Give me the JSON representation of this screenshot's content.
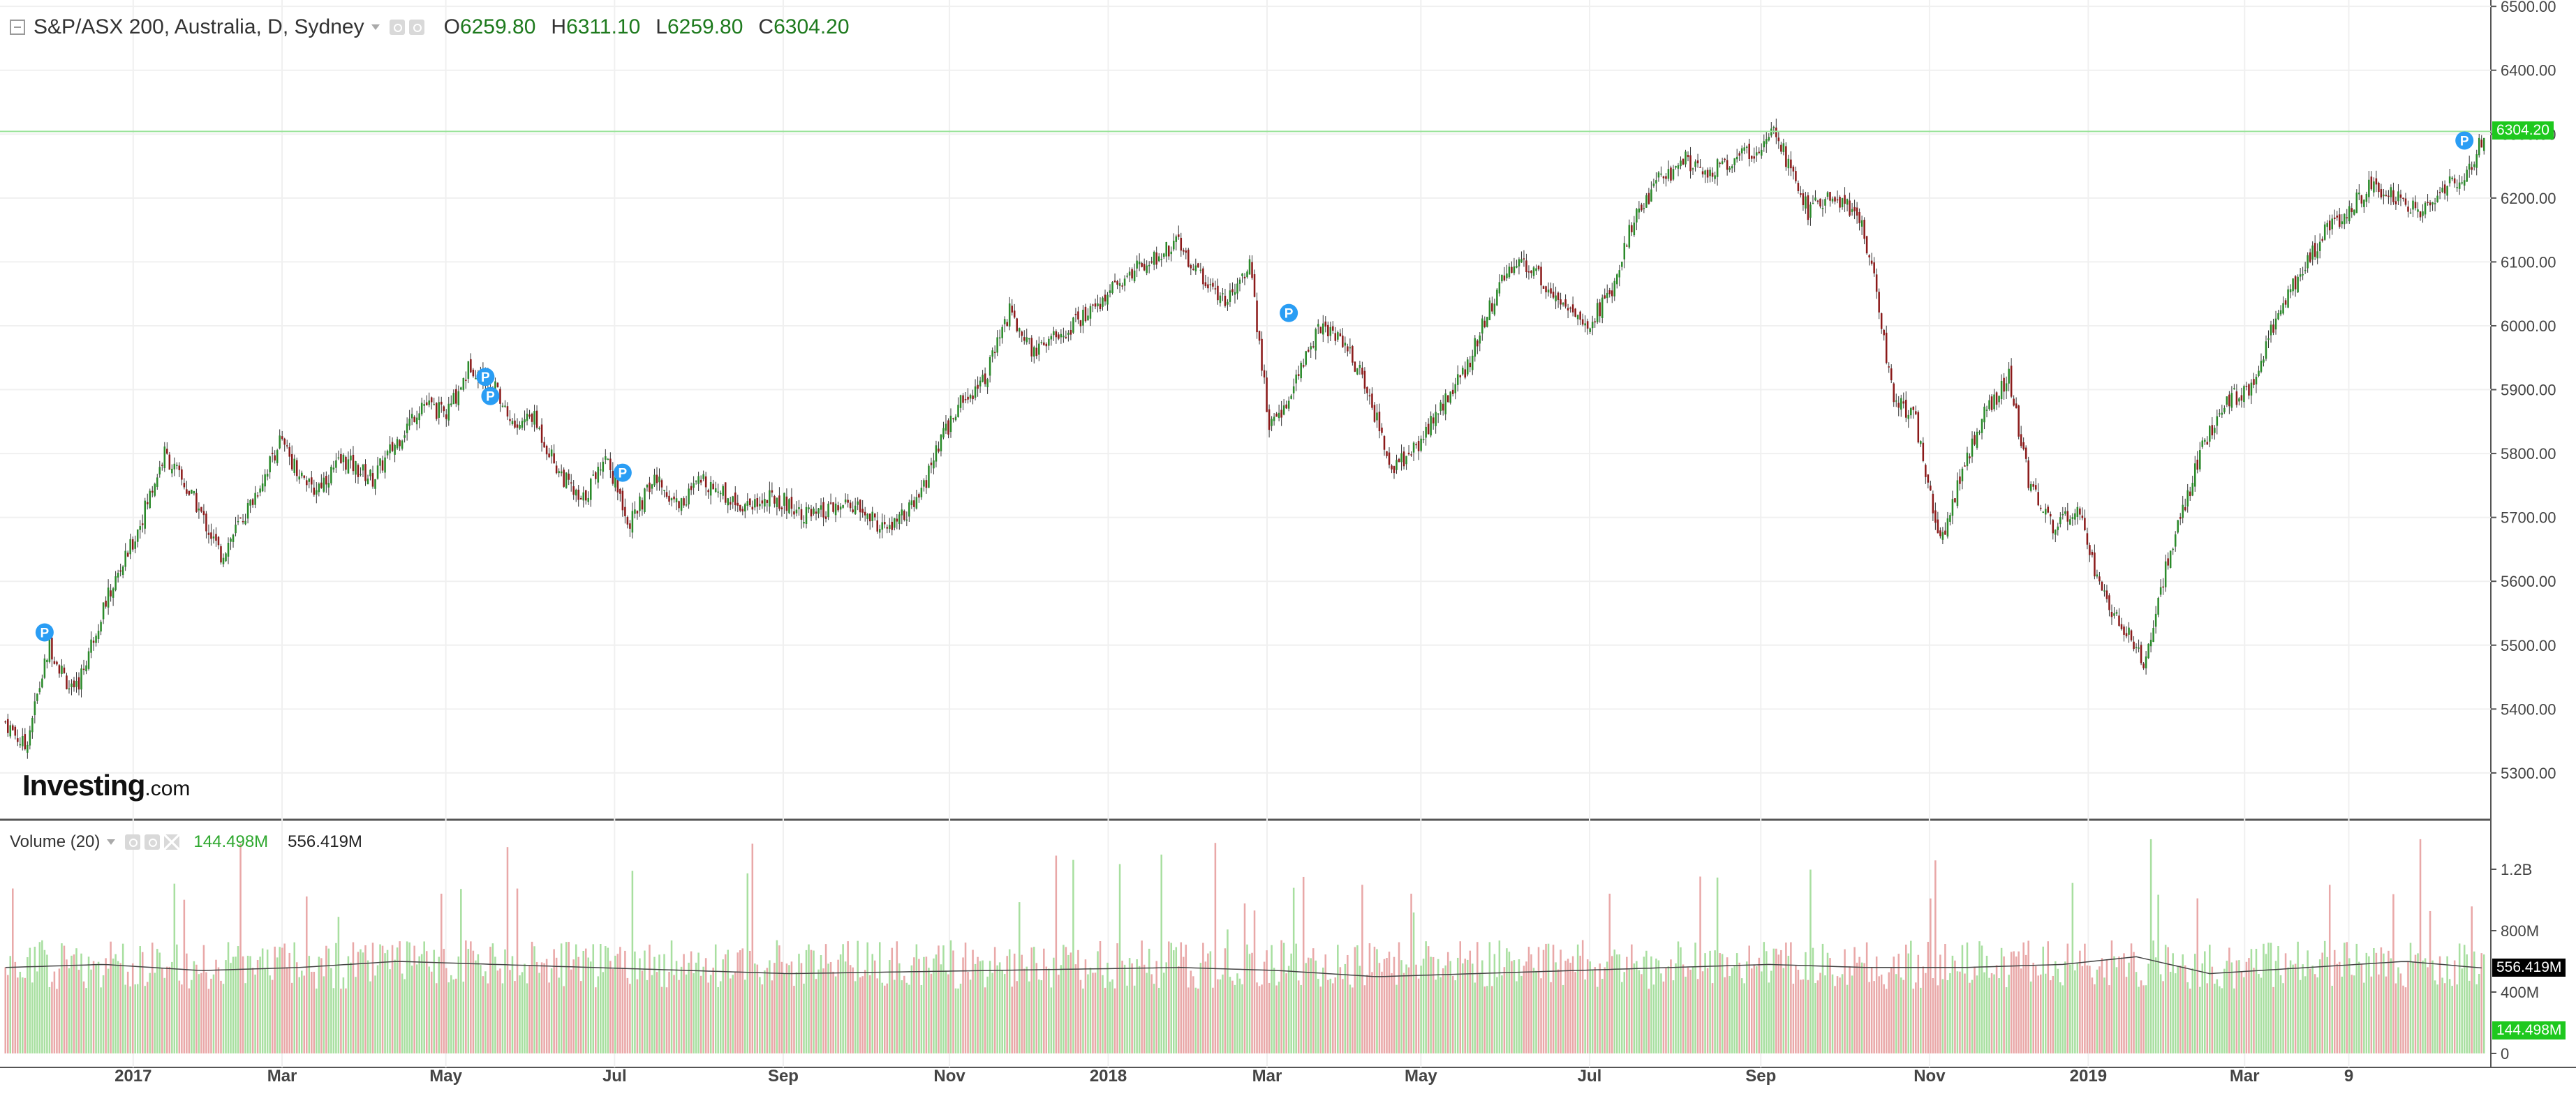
{
  "header": {
    "symbol_title": "S&P/ASX 200, Australia, D, Sydney",
    "open_label": "O",
    "open_value": "6259.80",
    "high_label": "H",
    "high_value": "6311.10",
    "low_label": "L",
    "low_value": "6259.80",
    "close_label": "C",
    "close_value": "6304.20"
  },
  "volume_legend": {
    "title": "Volume (20)",
    "volume_value": "144.498M",
    "ma_value": "556.419M"
  },
  "brand": {
    "name": "Investing",
    "suffix": ".com"
  },
  "last_price_tag": "6304.20",
  "last_volume_tag": "144.498M",
  "last_ma_tag": "556.419M",
  "colors": {
    "up": "#2a8a2a",
    "down": "#8b1a1a",
    "wick": "#333333",
    "vol_up": "#a8dfa0",
    "vol_down": "#e9a8a8",
    "price_line": "#9be39b",
    "price_tag": "#1ec81e",
    "marker": "#2a9df4",
    "ma_line": "#444444"
  },
  "chart_data": {
    "type": "candlestick",
    "title": "S&P/ASX 200, Australia, D, Sydney",
    "x_ticks": [
      "2017",
      "Mar",
      "May",
      "Jul",
      "Sep",
      "Nov",
      "2018",
      "Mar",
      "May",
      "Jul",
      "Sep",
      "Nov",
      "2019",
      "Mar",
      "9"
    ],
    "price_axis": {
      "ylim": [
        5230,
        6510
      ],
      "ticks": [
        "5300.00",
        "5400.00",
        "5500.00",
        "5600.00",
        "5700.00",
        "5800.00",
        "5900.00",
        "6000.00",
        "6100.00",
        "6200.00",
        "6300.00",
        "6400.00",
        "6500.00"
      ],
      "tick_values": [
        5300,
        5400,
        5500,
        5600,
        5700,
        5800,
        5900,
        6000,
        6100,
        6200,
        6300,
        6400,
        6500
      ]
    },
    "volume_axis": {
      "ylim": [
        0,
        1400
      ],
      "ticks": [
        "0",
        "400M",
        "800M",
        "1.2B"
      ],
      "tick_values": [
        0,
        400,
        800,
        1200
      ]
    },
    "last_price": 6304.2,
    "approx_close_path": [
      [
        0,
        5380
      ],
      [
        8,
        5340
      ],
      [
        18,
        5500
      ],
      [
        28,
        5420
      ],
      [
        40,
        5560
      ],
      [
        52,
        5660
      ],
      [
        65,
        5800
      ],
      [
        78,
        5720
      ],
      [
        88,
        5640
      ],
      [
        100,
        5720
      ],
      [
        112,
        5820
      ],
      [
        125,
        5740
      ],
      [
        138,
        5790
      ],
      [
        150,
        5760
      ],
      [
        160,
        5820
      ],
      [
        170,
        5880
      ],
      [
        180,
        5860
      ],
      [
        190,
        5940
      ],
      [
        200,
        5900
      ],
      [
        208,
        5840
      ],
      [
        215,
        5860
      ],
      [
        225,
        5780
      ],
      [
        235,
        5720
      ],
      [
        245,
        5800
      ],
      [
        255,
        5690
      ],
      [
        265,
        5760
      ],
      [
        275,
        5720
      ],
      [
        285,
        5760
      ],
      [
        300,
        5720
      ],
      [
        315,
        5730
      ],
      [
        330,
        5700
      ],
      [
        345,
        5720
      ],
      [
        360,
        5680
      ],
      [
        372,
        5720
      ],
      [
        382,
        5820
      ],
      [
        390,
        5880
      ],
      [
        400,
        5920
      ],
      [
        410,
        6020
      ],
      [
        420,
        5960
      ],
      [
        432,
        5990
      ],
      [
        445,
        6030
      ],
      [
        458,
        6080
      ],
      [
        470,
        6110
      ],
      [
        478,
        6130
      ],
      [
        488,
        6080
      ],
      [
        498,
        6040
      ],
      [
        508,
        6100
      ],
      [
        516,
        5840
      ],
      [
        526,
        5900
      ],
      [
        536,
        6000
      ],
      [
        546,
        5980
      ],
      [
        556,
        5900
      ],
      [
        566,
        5780
      ],
      [
        576,
        5810
      ],
      [
        586,
        5870
      ],
      [
        596,
        5930
      ],
      [
        606,
        6030
      ],
      [
        616,
        6100
      ],
      [
        626,
        6080
      ],
      [
        636,
        6030
      ],
      [
        646,
        6000
      ],
      [
        656,
        6060
      ],
      [
        666,
        6180
      ],
      [
        676,
        6230
      ],
      [
        686,
        6260
      ],
      [
        696,
        6240
      ],
      [
        706,
        6260
      ],
      [
        716,
        6280
      ],
      [
        722,
        6320
      ],
      [
        728,
        6250
      ],
      [
        736,
        6180
      ],
      [
        746,
        6200
      ],
      [
        756,
        6180
      ],
      [
        762,
        6100
      ],
      [
        770,
        5900
      ],
      [
        780,
        5850
      ],
      [
        790,
        5660
      ],
      [
        800,
        5780
      ],
      [
        808,
        5860
      ],
      [
        818,
        5920
      ],
      [
        826,
        5760
      ],
      [
        836,
        5680
      ],
      [
        846,
        5720
      ],
      [
        856,
        5580
      ],
      [
        866,
        5520
      ],
      [
        874,
        5470
      ],
      [
        882,
        5620
      ],
      [
        890,
        5720
      ],
      [
        898,
        5820
      ],
      [
        906,
        5880
      ],
      [
        916,
        5900
      ],
      [
        926,
        6000
      ],
      [
        936,
        6080
      ],
      [
        946,
        6140
      ],
      [
        956,
        6180
      ],
      [
        966,
        6220
      ],
      [
        976,
        6200
      ],
      [
        986,
        6180
      ],
      [
        996,
        6220
      ],
      [
        1006,
        6240
      ],
      [
        1012,
        6300
      ]
    ],
    "approx_volume_ma": [
      [
        0,
        560
      ],
      [
        40,
        580
      ],
      [
        80,
        540
      ],
      [
        120,
        560
      ],
      [
        160,
        600
      ],
      [
        200,
        580
      ],
      [
        240,
        560
      ],
      [
        280,
        540
      ],
      [
        320,
        520
      ],
      [
        360,
        530
      ],
      [
        400,
        540
      ],
      [
        440,
        550
      ],
      [
        480,
        560
      ],
      [
        520,
        540
      ],
      [
        560,
        500
      ],
      [
        600,
        520
      ],
      [
        640,
        540
      ],
      [
        680,
        560
      ],
      [
        720,
        580
      ],
      [
        760,
        560
      ],
      [
        800,
        560
      ],
      [
        840,
        580
      ],
      [
        870,
        630
      ],
      [
        900,
        520
      ],
      [
        940,
        560
      ],
      [
        980,
        600
      ],
      [
        1012,
        556
      ]
    ]
  }
}
